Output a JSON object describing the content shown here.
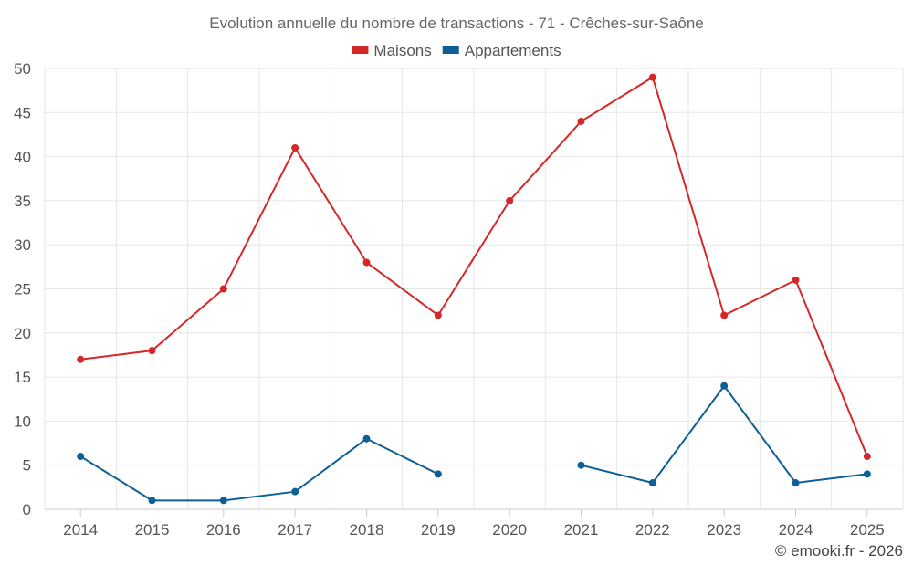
{
  "chart_data": {
    "type": "line",
    "title": "Evolution annuelle du nombre de transactions - 71 - Crêches-sur-Saône",
    "categories": [
      "2014",
      "2015",
      "2016",
      "2017",
      "2018",
      "2019",
      "2020",
      "2021",
      "2022",
      "2023",
      "2024",
      "2025"
    ],
    "series": [
      {
        "name": "Maisons",
        "color": "#d62728",
        "values": [
          17,
          18,
          25,
          41,
          28,
          22,
          35,
          44,
          49,
          22,
          26,
          6
        ]
      },
      {
        "name": "Appartements",
        "color": "#0d6096",
        "values": [
          6,
          1,
          1,
          2,
          8,
          4,
          null,
          5,
          3,
          14,
          3,
          4
        ]
      }
    ],
    "ylim": [
      0,
      50
    ],
    "yticks": [
      0,
      5,
      10,
      15,
      20,
      25,
      30,
      35,
      40,
      45,
      50
    ],
    "xlabel": "",
    "ylabel": "",
    "grid": true,
    "legend_position": "top-center"
  },
  "credit": "© emooki.fr - 2026"
}
